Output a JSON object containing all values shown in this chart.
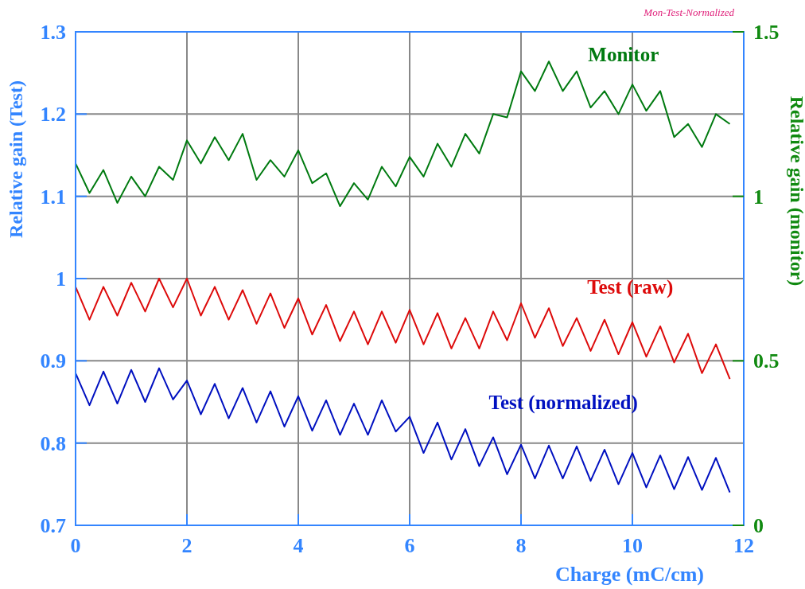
{
  "chart_data": {
    "type": "line",
    "xlabel": "Charge  (mC/cm)",
    "ylabel": "Relative  gain  (Test)",
    "y2label": "Relative  gain  (monitor)",
    "annotations": [
      "Mon-Test-Normalized"
    ],
    "x": [
      0,
      0.25,
      0.5,
      0.75,
      1,
      1.25,
      1.5,
      1.75,
      2,
      2.25,
      2.5,
      2.75,
      3,
      3.25,
      3.5,
      3.75,
      4,
      4.25,
      4.5,
      4.75,
      5,
      5.25,
      5.5,
      5.75,
      6,
      6.25,
      6.5,
      6.75,
      7,
      7.25,
      7.5,
      7.75,
      8,
      8.25,
      8.5,
      8.75,
      9,
      9.25,
      9.5,
      9.75,
      10,
      10.25,
      10.5,
      10.75,
      11,
      11.25,
      11.5,
      11.75
    ],
    "series": [
      {
        "name": "Monitor",
        "color": "#007a10",
        "axis": "y2",
        "values": [
          1.1,
          1.01,
          1.08,
          0.98,
          1.06,
          1.0,
          1.09,
          1.05,
          1.17,
          1.1,
          1.18,
          1.11,
          1.19,
          1.05,
          1.11,
          1.06,
          1.14,
          1.04,
          1.07,
          0.97,
          1.04,
          0.99,
          1.09,
          1.03,
          1.12,
          1.06,
          1.16,
          1.09,
          1.19,
          1.13,
          1.25,
          1.24,
          1.38,
          1.32,
          1.41,
          1.32,
          1.38,
          1.27,
          1.32,
          1.25,
          1.34,
          1.26,
          1.32,
          1.18,
          1.22,
          1.15,
          1.25,
          1.22
        ]
      },
      {
        "name": "Test  (raw)",
        "color": "#dd0a0a",
        "values": [
          0.99,
          0.95,
          0.99,
          0.955,
          0.995,
          0.96,
          1.0,
          0.965,
          1.0,
          0.955,
          0.99,
          0.95,
          0.986,
          0.945,
          0.982,
          0.94,
          0.976,
          0.932,
          0.968,
          0.924,
          0.96,
          0.92,
          0.96,
          0.922,
          0.962,
          0.92,
          0.958,
          0.915,
          0.952,
          0.915,
          0.96,
          0.925,
          0.97,
          0.928,
          0.964,
          0.918,
          0.952,
          0.912,
          0.95,
          0.908,
          0.947,
          0.905,
          0.942,
          0.898,
          0.933,
          0.885,
          0.92,
          0.878
        ]
      },
      {
        "name": "Test  (normalized)",
        "color": "#0010c0",
        "values": [
          0.885,
          0.846,
          0.887,
          0.848,
          0.889,
          0.85,
          0.891,
          0.853,
          0.876,
          0.835,
          0.872,
          0.83,
          0.867,
          0.825,
          0.863,
          0.82,
          0.857,
          0.815,
          0.852,
          0.81,
          0.848,
          0.81,
          0.852,
          0.814,
          0.832,
          0.788,
          0.825,
          0.78,
          0.817,
          0.772,
          0.807,
          0.762,
          0.798,
          0.757,
          0.797,
          0.757,
          0.796,
          0.754,
          0.792,
          0.75,
          0.788,
          0.746,
          0.785,
          0.744,
          0.783,
          0.743,
          0.782,
          0.74
        ]
      }
    ],
    "xlim": [
      0,
      12
    ],
    "xticks": [
      0,
      2,
      4,
      6,
      8,
      10,
      12
    ],
    "ylim": [
      0.7,
      1.3
    ],
    "yticks": [
      0.7,
      0.8,
      0.9,
      1,
      1.1,
      1.2,
      1.3
    ],
    "y2lim": [
      0,
      1.5
    ],
    "y2ticks": [
      0,
      0.5,
      1,
      1.5
    ],
    "grid": true,
    "marker": "none",
    "line_style": "solid"
  }
}
